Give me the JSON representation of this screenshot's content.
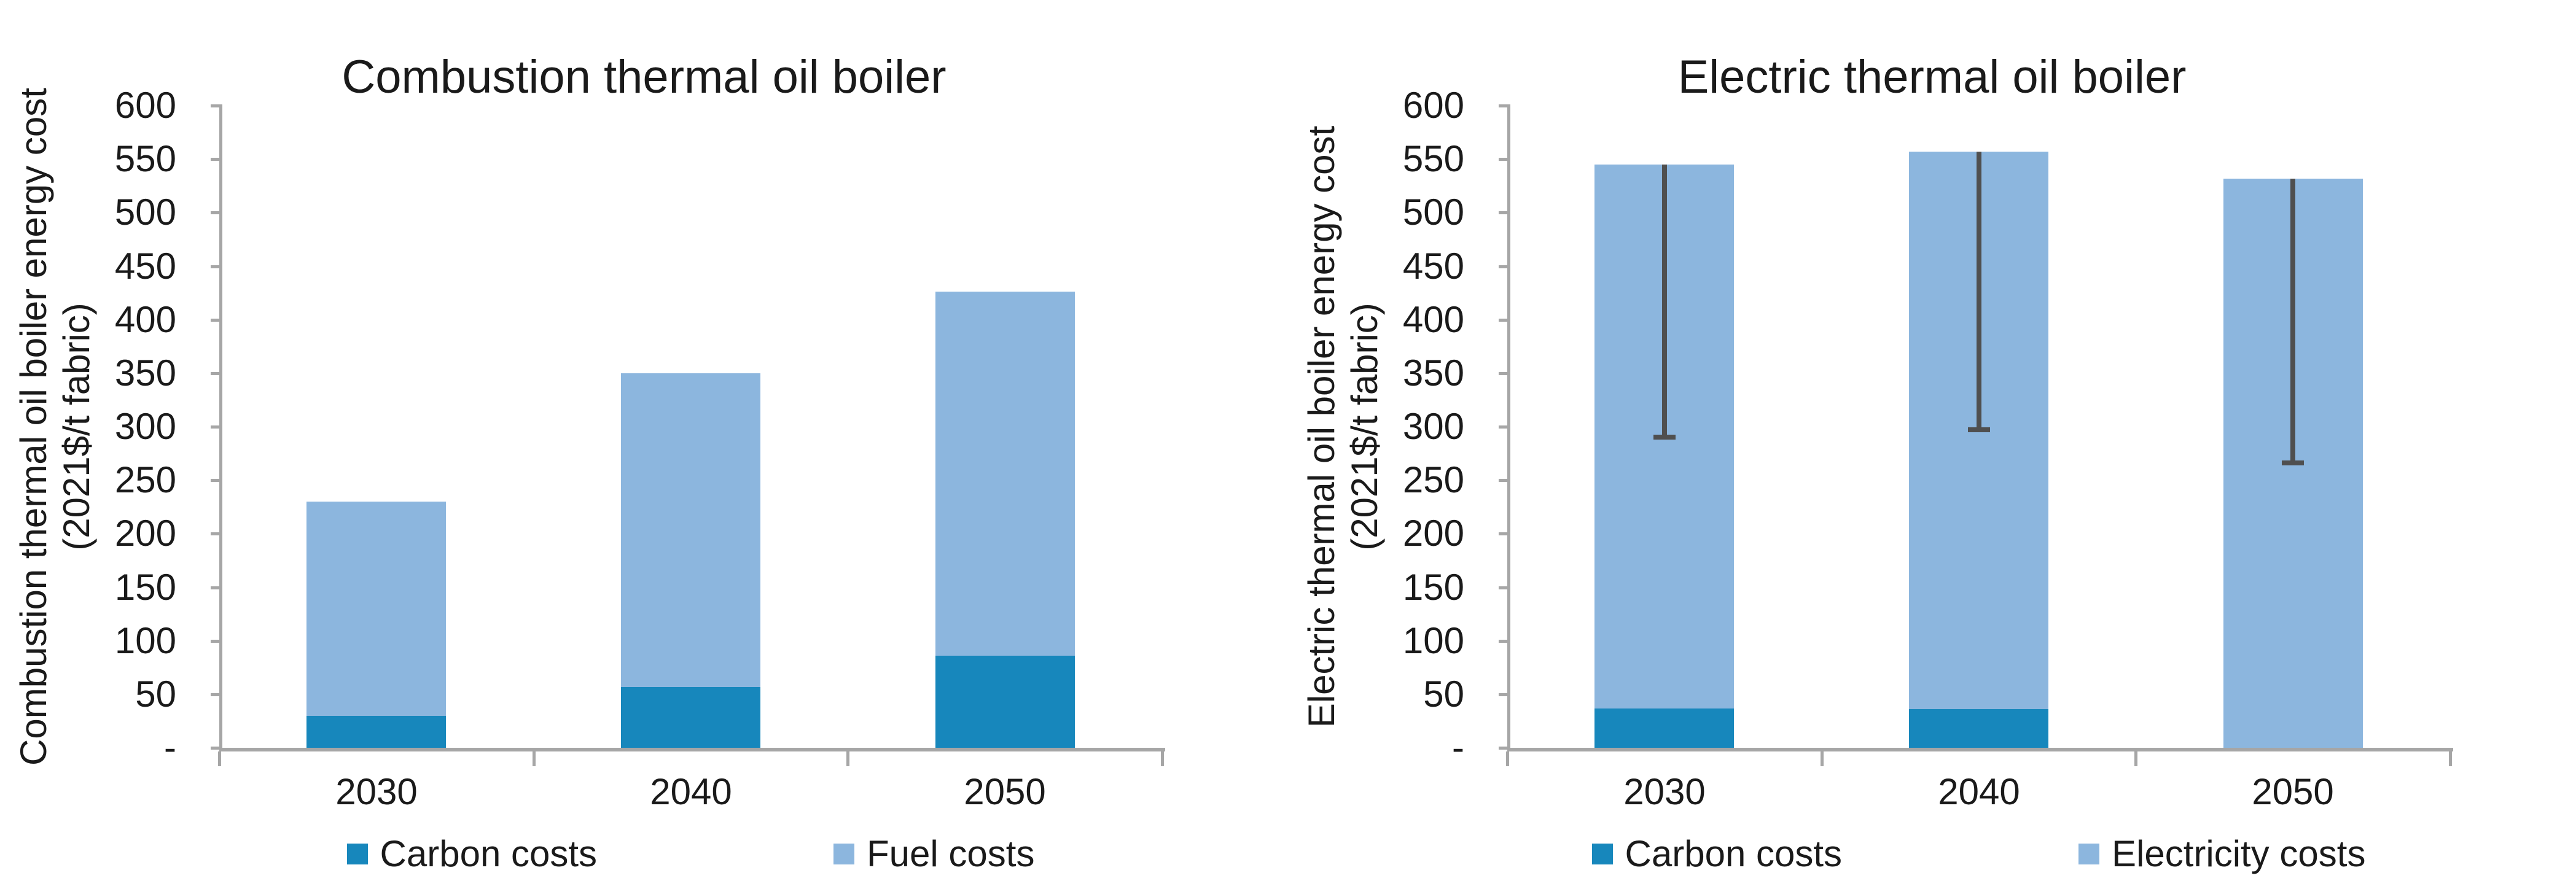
{
  "colors": {
    "carbon_blue": "#1787BC",
    "light_blue": "#8CB6DE",
    "axis_gray": "#A6A6A6",
    "error_bar_gray": "#4F4F4F",
    "text": "#1A1A1A",
    "background": "#FFFFFF"
  },
  "chart_data": [
    {
      "type": "bar",
      "stacked": true,
      "title": "Combustion thermal oil boiler",
      "ylabel_line1": "Combustion thermal oil boiler energy cost",
      "ylabel_line2": "(2021$/t fabric)",
      "categories": [
        "2030",
        "2040",
        "2050"
      ],
      "series": [
        {
          "name": "Carbon costs",
          "color": "#1787BC",
          "values": [
            30,
            57,
            86
          ]
        },
        {
          "name": "Fuel costs",
          "color": "#8CB6DE",
          "values": [
            200,
            293,
            340
          ]
        }
      ],
      "totals": [
        230,
        350,
        426
      ],
      "ylim": [
        0,
        600
      ],
      "y_tick_step": 50,
      "y_tick_zero_label": "-",
      "grid": false,
      "legend_position": "bottom"
    },
    {
      "type": "bar",
      "stacked": true,
      "title": "Electric thermal oil boiler",
      "ylabel_line1": "Electric thermal oil boiler energy cost",
      "ylabel_line2": "(2021$/t fabric)",
      "categories": [
        "2030",
        "2040",
        "2050"
      ],
      "series": [
        {
          "name": "Carbon costs",
          "color": "#1787BC",
          "values": [
            37,
            36,
            0
          ]
        },
        {
          "name": "Electricity costs",
          "color": "#8CB6DE",
          "values": [
            508,
            521,
            532
          ]
        }
      ],
      "totals": [
        545,
        557,
        532
      ],
      "error_bars": {
        "high": [
          545,
          557,
          532
        ],
        "low": [
          290,
          297,
          266
        ],
        "color": "#4F4F4F"
      },
      "ylim": [
        0,
        600
      ],
      "y_tick_step": 50,
      "y_tick_zero_label": "-",
      "grid": false,
      "legend_position": "bottom"
    }
  ]
}
